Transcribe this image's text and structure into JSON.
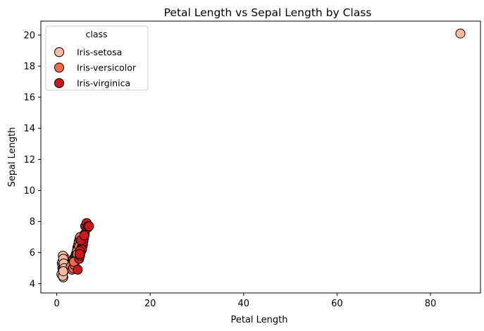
{
  "chart_data": {
    "type": "scatter",
    "title": "Petal Length vs Sepal Length by Class",
    "xlabel": "Petal Length",
    "ylabel": "Sepal Length",
    "xlim": [
      -3.4,
      90.7
    ],
    "ylim": [
      3.4,
      20.9
    ],
    "xticks": [
      0,
      20,
      40,
      60,
      80
    ],
    "yticks": [
      4,
      6,
      8,
      10,
      12,
      14,
      16,
      18,
      20
    ],
    "grid": false,
    "legend": {
      "title": "class",
      "placement": "top-left"
    },
    "series": [
      {
        "name": "Iris-setosa",
        "color": "#fcbba1",
        "x": [
          1.4,
          1.3,
          1.5,
          1.2,
          1.6,
          1.4,
          1.1,
          1.7,
          1.0,
          1.9,
          1.5,
          1.6,
          1.3,
          1.4,
          1.5,
          1.2,
          1.4,
          1.3,
          1.5,
          1.6,
          1.4,
          86.4
        ],
        "y": [
          4.4,
          4.6,
          4.8,
          5.0,
          5.1,
          5.2,
          5.3,
          5.4,
          4.6,
          5.1,
          5.5,
          5.7,
          5.8,
          5.0,
          4.9,
          5.4,
          5.6,
          4.5,
          5.3,
          5.0,
          4.8,
          20.1
        ]
      },
      {
        "name": "Iris-versicolor",
        "color": "#fb6a4a",
        "x": [
          3.0,
          3.3,
          3.5,
          3.6,
          3.9,
          4.0,
          4.1,
          4.2,
          4.4,
          4.5,
          4.6,
          4.7,
          4.9,
          5.0,
          5.1,
          4.0,
          3.8,
          4.3,
          4.5,
          4.8,
          4.4,
          3.7
        ],
        "y": [
          5.1,
          4.9,
          5.0,
          5.6,
          5.7,
          5.8,
          5.9,
          6.0,
          6.3,
          6.2,
          6.5,
          6.7,
          6.9,
          7.0,
          6.6,
          5.5,
          5.2,
          6.1,
          5.7,
          6.4,
          5.9,
          5.4
        ]
      },
      {
        "name": "Iris-virginica",
        "color": "#cb181d",
        "x": [
          4.5,
          4.8,
          5.0,
          5.1,
          5.3,
          5.5,
          5.6,
          5.7,
          5.8,
          6.0,
          6.1,
          6.4,
          6.6,
          6.7,
          6.9,
          5.4,
          5.0,
          5.2,
          5.9,
          4.9
        ],
        "y": [
          4.9,
          5.6,
          5.8,
          6.0,
          6.3,
          6.4,
          6.5,
          6.7,
          6.9,
          7.2,
          7.7,
          7.9,
          7.6,
          7.7,
          7.7,
          6.2,
          6.1,
          6.8,
          7.1,
          5.9
        ]
      }
    ]
  }
}
